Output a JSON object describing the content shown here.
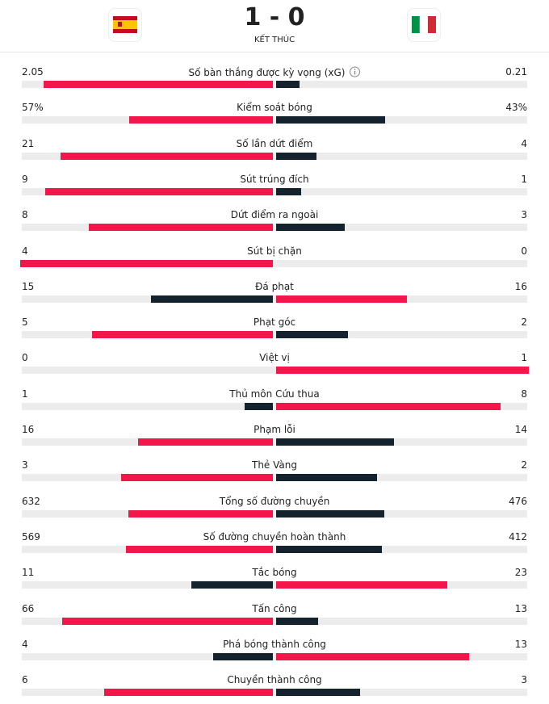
{
  "header": {
    "score": "1 - 0",
    "status": "KẾT THÚC"
  },
  "stats": [
    {
      "label": "Số bàn thắng được kỳ vọng (xG)",
      "home": 2.05,
      "away": 0.21
    },
    {
      "label": "Kiểm soát bóng",
      "home": 57,
      "away": 43,
      "home_label": "57%",
      "away_label": "43%"
    },
    {
      "label": "Số lần dứt điểm",
      "home": 21,
      "away": 4
    },
    {
      "label": "Sút trúng đích",
      "home": 9,
      "away": 1
    },
    {
      "label": "Dứt điểm ra ngoài",
      "home": 8,
      "away": 3
    },
    {
      "label": "Sút bị chặn",
      "home": 4,
      "away": 0
    },
    {
      "label": "Đá phạt",
      "home": 15,
      "away": 16
    },
    {
      "label": "Phạt góc",
      "home": 5,
      "away": 2
    },
    {
      "label": "Việt vị",
      "home": 0,
      "away": 1
    },
    {
      "label": "Thủ môn Cứu thua",
      "home": 1,
      "away": 8
    },
    {
      "label": "Phạm lỗi",
      "home": 16,
      "away": 14
    },
    {
      "label": "Thẻ Vàng",
      "home": 3,
      "away": 2
    },
    {
      "label": "Tổng số đường chuyền",
      "home": 632,
      "away": 476
    },
    {
      "label": "Số đường chuyền hoàn thành",
      "home": 569,
      "away": 412
    },
    {
      "label": "Tắc bóng",
      "home": 11,
      "away": 23
    },
    {
      "label": "Tấn công",
      "home": 66,
      "away": 13
    },
    {
      "label": "Phá bóng thành công",
      "home": 4,
      "away": 13
    },
    {
      "label": "Chuyền thành công",
      "home": 6,
      "away": 3
    }
  ]
}
